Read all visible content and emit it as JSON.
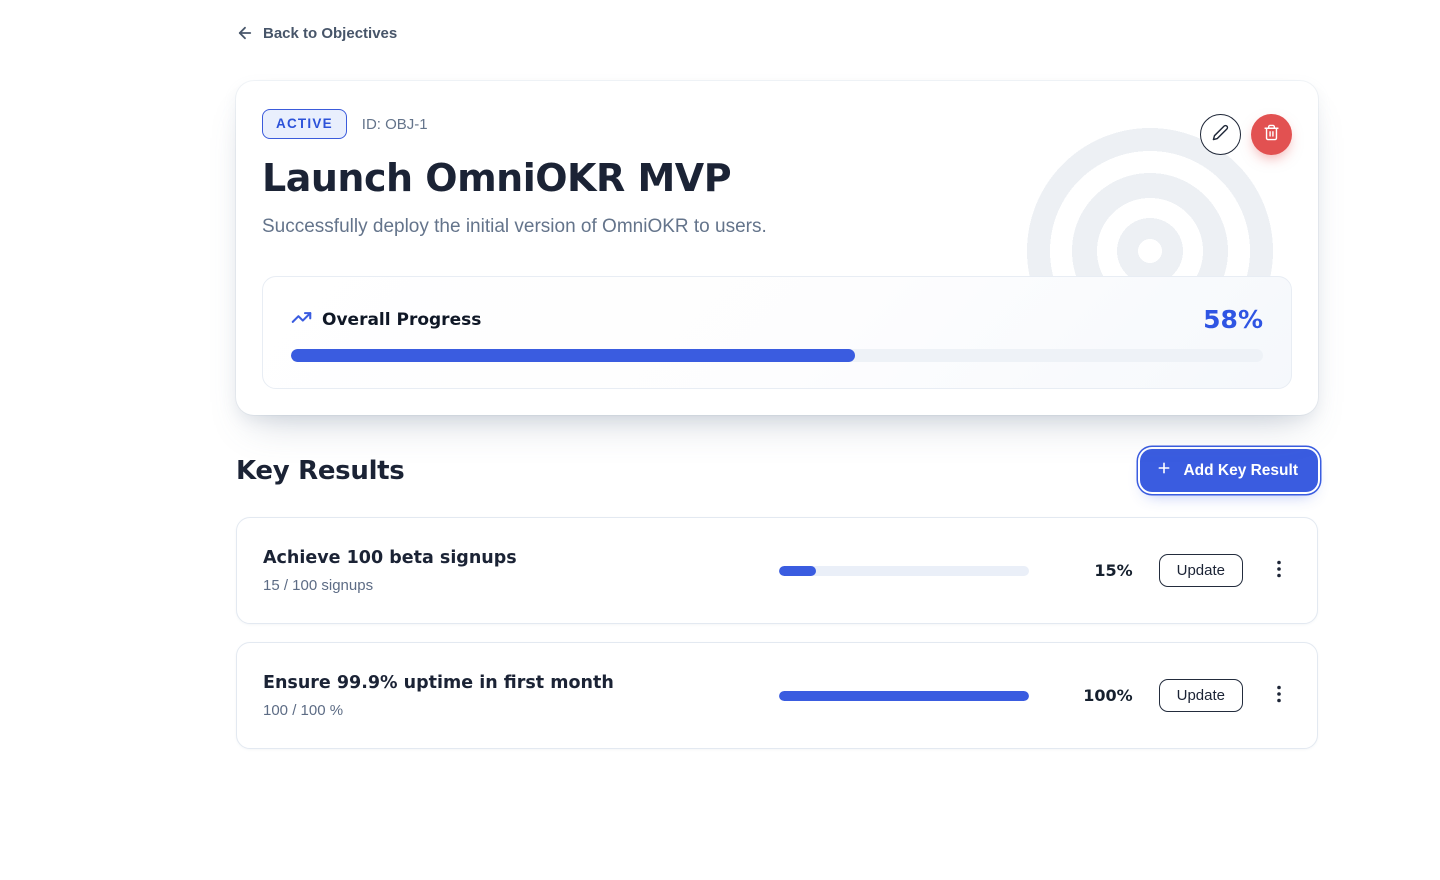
{
  "colors": {
    "accent": "#3a5ce0",
    "danger": "#e25151",
    "badge_blue": "#2c52d9"
  },
  "back_link": {
    "label": "Back to Objectives"
  },
  "objective": {
    "status_badge": "ACTIVE",
    "id_label": "ID: OBJ-1",
    "title": "Launch OmniOKR MVP",
    "description": "Successfully deploy the initial version of OmniOKR to users.",
    "overall_progress": {
      "label": "Overall Progress",
      "percent_label": "58%",
      "percent": 58
    }
  },
  "key_results": {
    "heading": "Key Results",
    "add_button_label": "Add Key Result",
    "items": [
      {
        "title": "Achieve 100 beta signups",
        "progress_text": "15 / 100 signups",
        "percent_label": "15%",
        "percent": 15,
        "update_label": "Update"
      },
      {
        "title": "Ensure 99.9% uptime in first month",
        "progress_text": "100 / 100 %",
        "percent_label": "100%",
        "percent": 100,
        "update_label": "Update"
      }
    ]
  }
}
